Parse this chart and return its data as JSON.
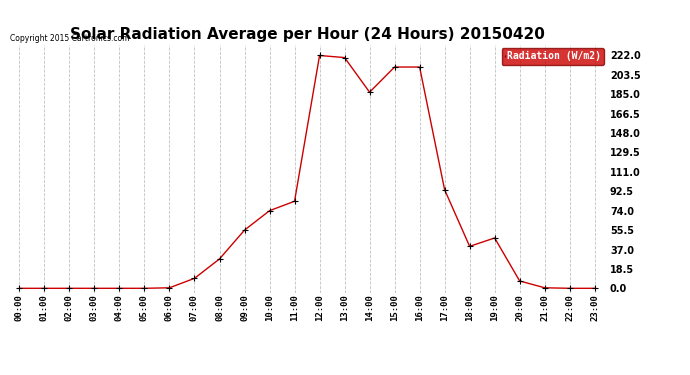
{
  "title": "Solar Radiation Average per Hour (24 Hours) 20150420",
  "copyright_text": "Copyright 2015 Cartronics.com",
  "legend_label": "Radiation (W/m2)",
  "x_labels": [
    "00:00",
    "01:00",
    "02:00",
    "03:00",
    "04:00",
    "05:00",
    "06:00",
    "07:00",
    "08:00",
    "09:00",
    "10:00",
    "11:00",
    "12:00",
    "13:00",
    "14:00",
    "15:00",
    "16:00",
    "17:00",
    "18:00",
    "19:00",
    "20:00",
    "21:00",
    "22:00",
    "23:00"
  ],
  "y_values": [
    0.0,
    0.0,
    0.0,
    0.0,
    0.0,
    0.0,
    0.5,
    9.5,
    28.0,
    55.5,
    74.0,
    83.0,
    222.0,
    220.0,
    187.0,
    211.0,
    211.0,
    94.0,
    40.0,
    48.0,
    7.0,
    0.5,
    0.0,
    0.0
  ],
  "line_color": "#cc0000",
  "marker": "+",
  "marker_color": "#000000",
  "bg_color": "#ffffff",
  "grid_color": "#c0c0c0",
  "yticks": [
    0.0,
    18.5,
    37.0,
    55.5,
    74.0,
    92.5,
    111.0,
    129.5,
    148.0,
    166.5,
    185.0,
    203.5,
    222.0
  ],
  "ylim": [
    -4,
    232
  ],
  "title_fontsize": 11,
  "tick_fontsize": 6.5,
  "ytick_fontsize": 7,
  "legend_bg": "#cc0000",
  "legend_text_color": "#ffffff"
}
